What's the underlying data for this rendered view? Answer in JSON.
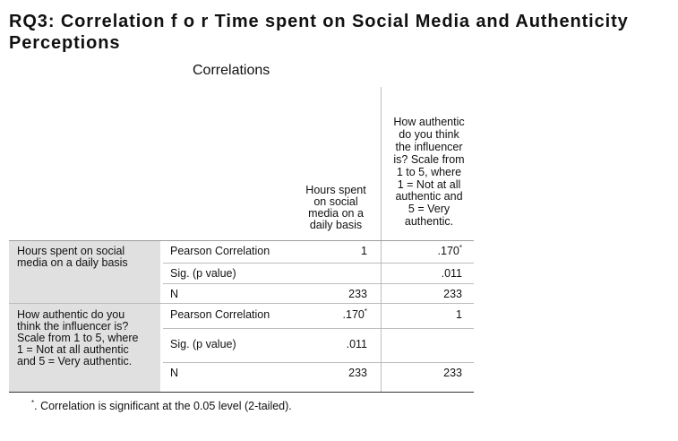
{
  "heading": {
    "line1": "RQ3: Correlation f o r Time spent on Social Media and Authenticity",
    "line2": "Perceptions"
  },
  "table_title": "Correlations",
  "columns": {
    "col1": [
      "Hours spent",
      "on social",
      "media on a",
      "daily basis"
    ],
    "col2": [
      "How authentic",
      "do you think",
      "the influencer",
      "is? Scale from",
      "1 to 5, where",
      "1 = Not at all",
      "authentic and",
      "5 = Very",
      "authentic."
    ]
  },
  "row_groups": [
    {
      "label": [
        "Hours spent on social",
        "media on a daily basis"
      ],
      "rows": [
        {
          "stat": "Pearson Correlation",
          "c1": "1",
          "c2": ".170",
          "c2_sup": "*"
        },
        {
          "stat": "Sig. (p value)",
          "c1": "",
          "c2": ".011"
        },
        {
          "stat": "N",
          "c1": "233",
          "c2": "233"
        }
      ]
    },
    {
      "label": [
        "How authentic do you",
        "think the influencer is?",
        "Scale from 1 to 5, where",
        "1 = Not at all authentic",
        "and 5 = Very authentic."
      ],
      "rows": [
        {
          "stat": "Pearson Correlation",
          "c1": ".170",
          "c1_sup": "*",
          "c2": "1"
        },
        {
          "stat": "Sig. (p value)",
          "c1": ".011",
          "c2": ""
        },
        {
          "stat": "N",
          "c1": "233",
          "c2": "233"
        }
      ]
    }
  ],
  "footnote": {
    "mark": "*",
    "text": ". Correlation is significant at the 0.05 level (2-tailed)."
  }
}
